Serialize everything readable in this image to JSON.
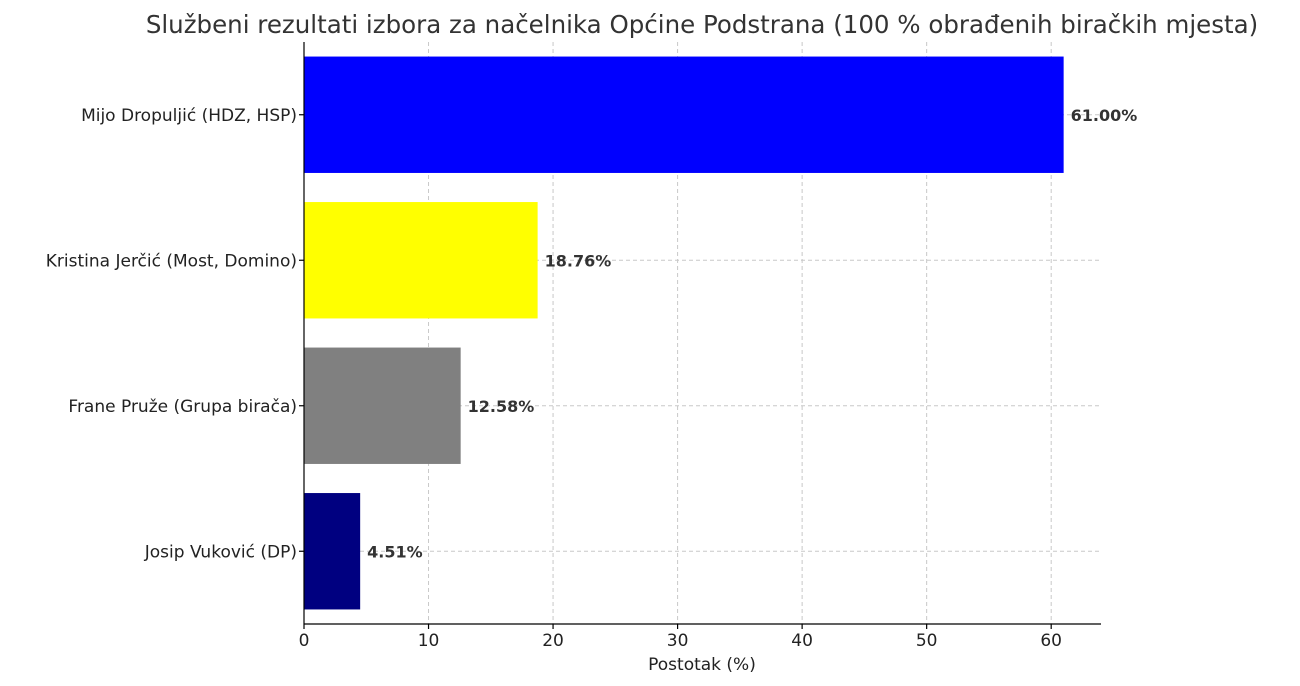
{
  "chart_data": {
    "type": "bar",
    "orientation": "horizontal",
    "title": "Službeni rezultati izbora za načelnika Općine Podstrana (100 % obrađenih biračkih mjesta)",
    "xlabel": "Postotak (%)",
    "ylabel": "",
    "xlim": [
      0,
      64
    ],
    "xticks": [
      0,
      10,
      20,
      30,
      40,
      50,
      60
    ],
    "grid": true,
    "categories": [
      "Mijo Dropuljić (HDZ, HSP)",
      "Kristina Jerčić (Most, Domino)",
      "Frane Pruže (Grupa birača)",
      "Josip Vuković (DP)"
    ],
    "values": [
      61.0,
      18.76,
      12.58,
      4.51
    ],
    "value_labels": [
      "61.00%",
      "18.76%",
      "12.58%",
      "4.51%"
    ],
    "colors": [
      "#0000ff",
      "#ffff00",
      "#808080",
      "#000080"
    ]
  }
}
